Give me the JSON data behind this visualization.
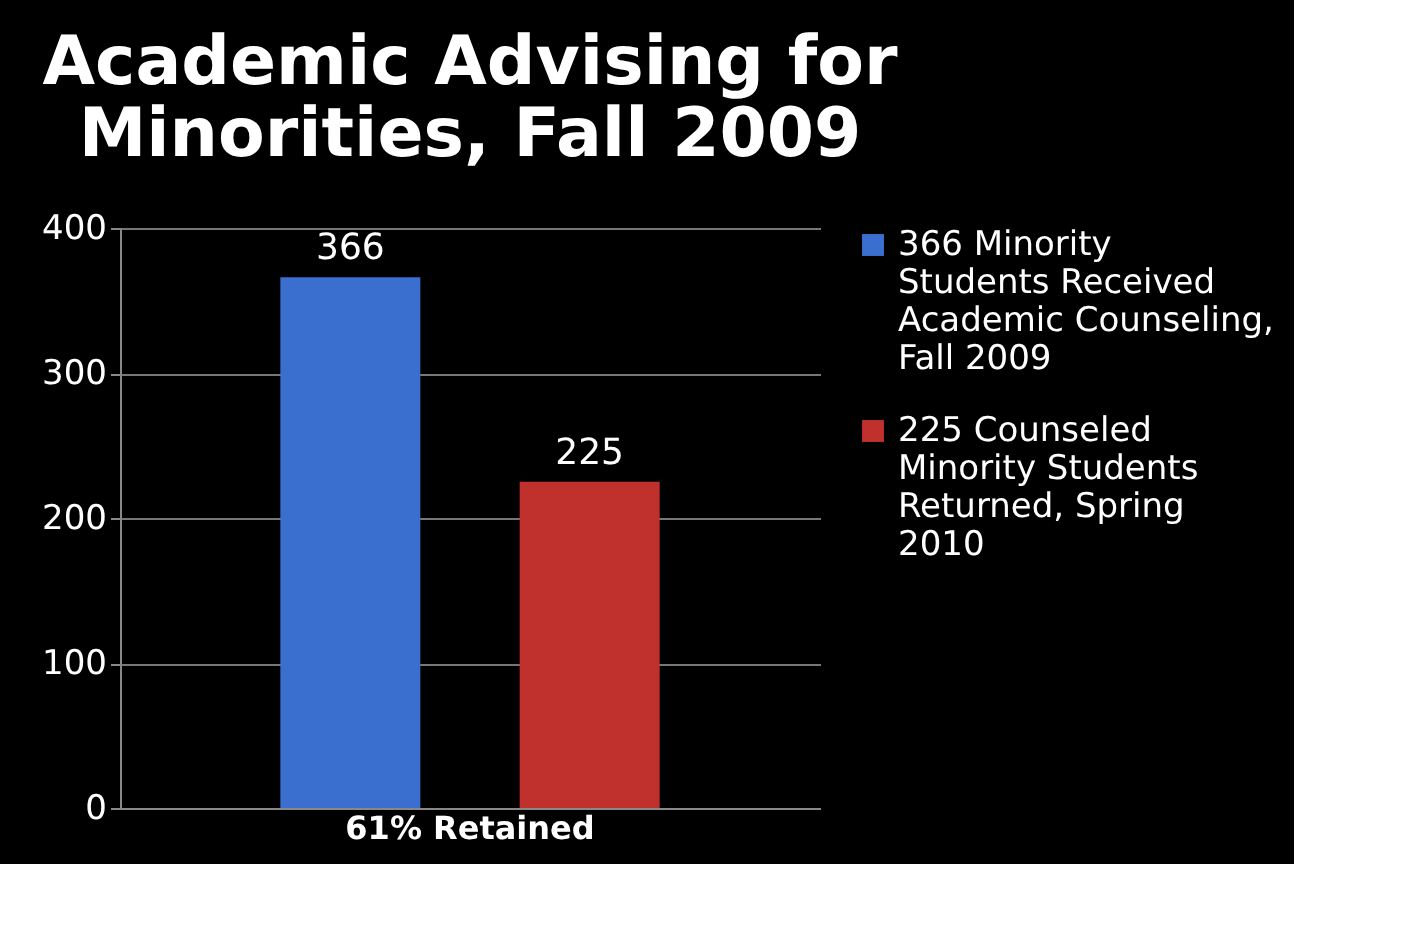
{
  "chart_data": {
    "type": "bar",
    "title": "Academic Advising for Minorities, Fall 2009",
    "categories": [
      "61% Retained"
    ],
    "series": [
      {
        "name": "366 Minority Students Received Academic Counseling, Fall 2009",
        "color": "#3a6fd0",
        "values": [
          366
        ]
      },
      {
        "name": "225 Counseled Minority Students Returned, Spring 2010",
        "color": "#c0302c",
        "values": [
          225
        ]
      }
    ],
    "ylim": [
      0,
      400
    ],
    "yticks": [
      0,
      100,
      200,
      300,
      400
    ],
    "grid": "y",
    "legend": "right",
    "data_labels": true
  }
}
